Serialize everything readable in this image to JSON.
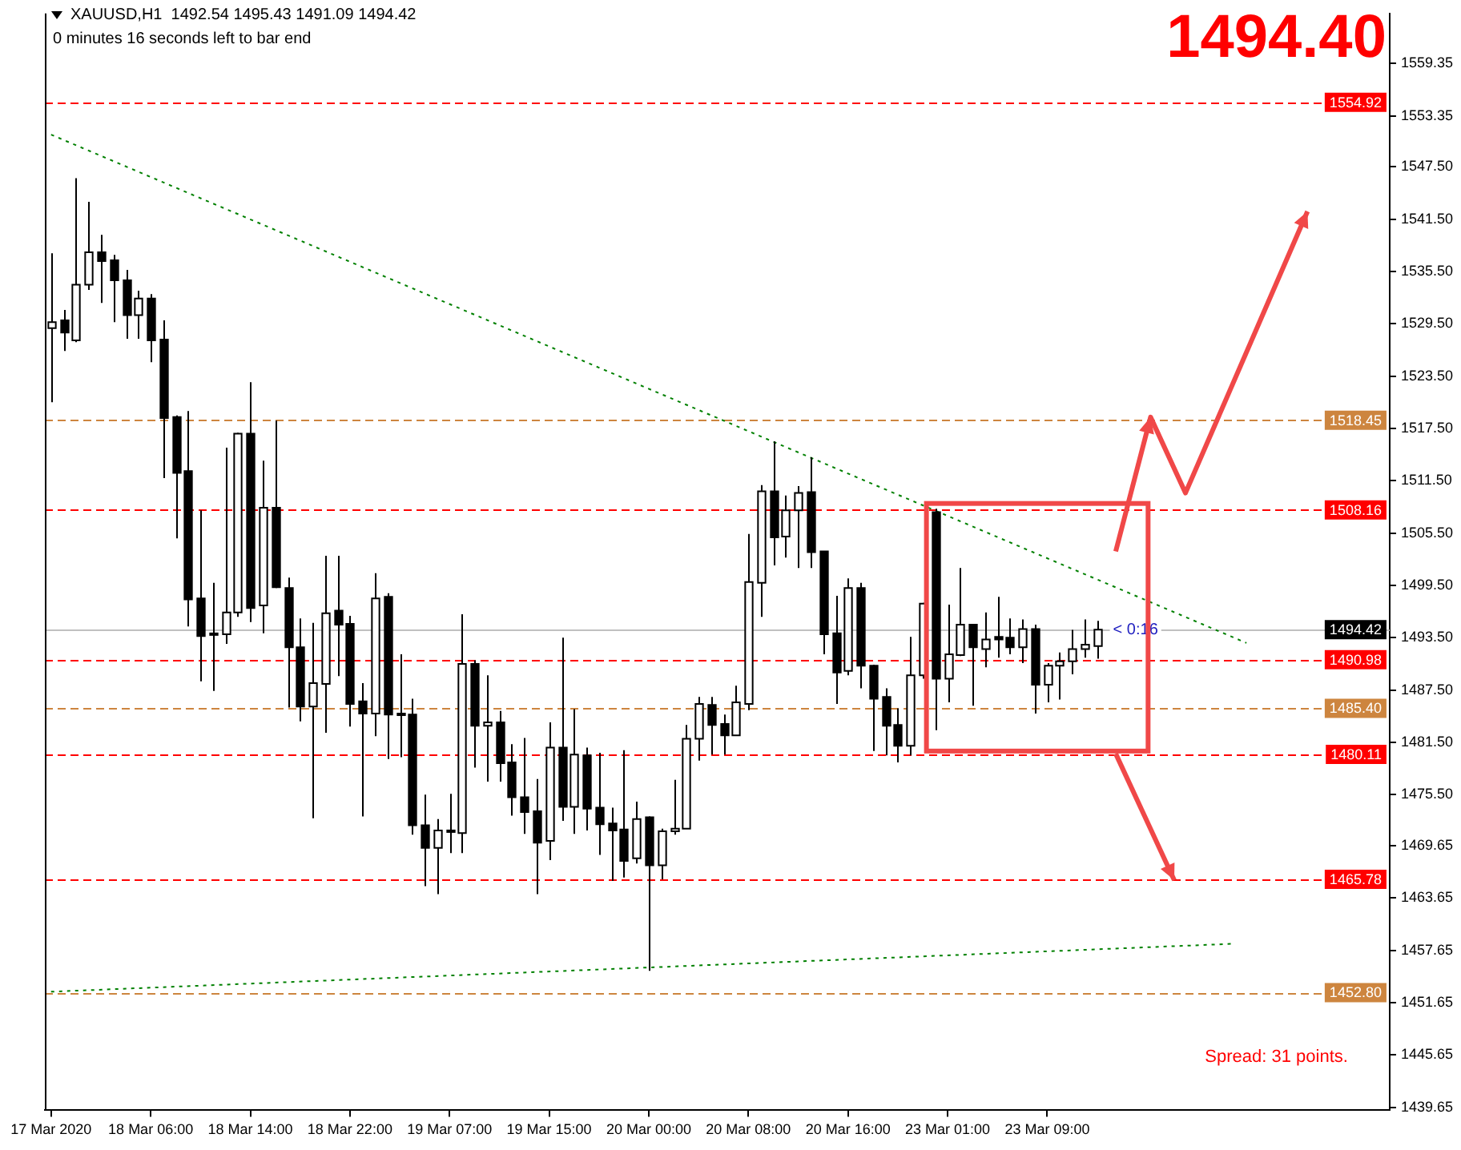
{
  "chart_data": {
    "type": "candlestick",
    "title": "XAUUSD,H1  1492.54 1495.43 1491.09 1494.42",
    "categories": [
      "17 Mar 2020",
      null,
      null,
      null,
      null,
      null,
      null,
      null,
      "18 Mar 06:00",
      null,
      null,
      null,
      null,
      null,
      null,
      null,
      "18 Mar 14:00",
      null,
      null,
      null,
      null,
      null,
      null,
      null,
      "18 Mar 22:00",
      null,
      null,
      null,
      null,
      null,
      null,
      null,
      "19 Mar 07:00",
      null,
      null,
      null,
      null,
      null,
      null,
      null,
      "19 Mar 15:00",
      null,
      null,
      null,
      null,
      null,
      null,
      null,
      "20 Mar 00:00",
      null,
      null,
      null,
      null,
      null,
      null,
      null,
      "20 Mar 08:00",
      null,
      null,
      null,
      null,
      null,
      null,
      null,
      "20 Mar 16:00",
      null,
      null,
      null,
      null,
      null,
      null,
      null,
      "23 Mar 01:00",
      null,
      null,
      null,
      null,
      null,
      null,
      null,
      "23 Mar 09:00",
      null,
      null,
      null,
      null,
      null,
      null,
      null,
      null,
      null,
      null,
      null,
      null,
      null,
      null,
      null,
      null,
      null,
      null,
      null,
      null,
      null,
      null,
      null,
      null,
      null,
      null,
      null
    ],
    "ohlc": [
      [
        1529.0,
        1537.6,
        1520.5,
        1529.7
      ],
      [
        1529.9,
        1531.1,
        1526.4,
        1528.5
      ],
      [
        1527.6,
        1546.2,
        1527.4,
        1534.0
      ],
      [
        1534.0,
        1543.5,
        1533.4,
        1537.7
      ],
      [
        1537.7,
        1539.7,
        1531.9,
        1536.7
      ],
      [
        1536.8,
        1537.4,
        1529.7,
        1534.5
      ],
      [
        1534.5,
        1535.7,
        1527.8,
        1530.5
      ],
      [
        1530.5,
        1533.3,
        1527.8,
        1532.4
      ],
      [
        1532.4,
        1532.9,
        1525.1,
        1527.6
      ],
      [
        1527.7,
        1529.9,
        1511.8,
        1518.7
      ],
      [
        1518.8,
        1519.0,
        1504.9,
        1512.4
      ],
      [
        1512.6,
        1519.5,
        1494.8,
        1497.9
      ],
      [
        1498.0,
        1508.1,
        1488.5,
        1493.7
      ],
      [
        1494.0,
        1499.8,
        1487.4,
        1493.9
      ],
      [
        1493.9,
        1515.3,
        1492.8,
        1496.4
      ],
      [
        1496.4,
        1517.0,
        1495.9,
        1516.9
      ],
      [
        1516.9,
        1522.8,
        1495.3,
        1496.9
      ],
      [
        1497.2,
        1513.8,
        1494.0,
        1508.4
      ],
      [
        1508.4,
        1518.4,
        1499.2,
        1499.3
      ],
      [
        1499.2,
        1500.4,
        1485.5,
        1492.4
      ],
      [
        1492.4,
        1495.7,
        1483.9,
        1485.6
      ],
      [
        1485.6,
        1495.2,
        1472.8,
        1488.3
      ],
      [
        1488.2,
        1502.9,
        1482.6,
        1496.3
      ],
      [
        1496.6,
        1502.9,
        1489.1,
        1495.0
      ],
      [
        1495.1,
        1496.0,
        1483.3,
        1485.9
      ],
      [
        1486.2,
        1488.3,
        1473.0,
        1484.8
      ],
      [
        1484.8,
        1500.9,
        1482.2,
        1498.0
      ],
      [
        1498.2,
        1498.6,
        1479.6,
        1484.7
      ],
      [
        1484.8,
        1491.6,
        1479.8,
        1484.8
      ],
      [
        1484.7,
        1486.5,
        1470.9,
        1472.0
      ],
      [
        1472.0,
        1475.5,
        1465.0,
        1469.4
      ],
      [
        1469.4,
        1472.7,
        1464.1,
        1471.4
      ],
      [
        1471.4,
        1475.6,
        1468.8,
        1471.4
      ],
      [
        1471.1,
        1496.2,
        1468.8,
        1490.5
      ],
      [
        1490.5,
        1490.9,
        1478.6,
        1483.4
      ],
      [
        1483.4,
        1489.2,
        1477.0,
        1483.8
      ],
      [
        1483.8,
        1485.1,
        1477.0,
        1479.1
      ],
      [
        1479.2,
        1481.3,
        1473.1,
        1475.2
      ],
      [
        1475.2,
        1482.0,
        1471.0,
        1473.5
      ],
      [
        1473.6,
        1477.3,
        1464.1,
        1470.0
      ],
      [
        1470.2,
        1483.8,
        1468.0,
        1480.9
      ],
      [
        1480.9,
        1493.5,
        1472.5,
        1474.1
      ],
      [
        1474.1,
        1485.3,
        1471.0,
        1480.1
      ],
      [
        1480.0,
        1480.9,
        1471.4,
        1473.9
      ],
      [
        1474.0,
        1480.3,
        1468.6,
        1472.1
      ],
      [
        1472.2,
        1474.0,
        1465.6,
        1471.4
      ],
      [
        1471.5,
        1480.6,
        1466.0,
        1467.9
      ],
      [
        1468.2,
        1474.7,
        1467.6,
        1472.7
      ],
      [
        1472.9,
        1473.0,
        1455.3,
        1467.4
      ],
      [
        1467.4,
        1471.6,
        1465.8,
        1471.3
      ],
      [
        1471.3,
        1477.2,
        1470.9,
        1471.6
      ],
      [
        1471.6,
        1483.5,
        1471.6,
        1481.9
      ],
      [
        1481.9,
        1486.7,
        1479.4,
        1485.9
      ],
      [
        1485.8,
        1486.7,
        1480.1,
        1483.5
      ],
      [
        1483.6,
        1484.7,
        1480.1,
        1482.3
      ],
      [
        1482.3,
        1488.0,
        1482.3,
        1486.1
      ],
      [
        1485.9,
        1505.4,
        1485.2,
        1499.9
      ],
      [
        1499.8,
        1511.0,
        1495.9,
        1510.3
      ],
      [
        1510.3,
        1516.0,
        1501.8,
        1505.0
      ],
      [
        1505.1,
        1509.8,
        1502.7,
        1508.1
      ],
      [
        1508.1,
        1510.9,
        1501.5,
        1510.1
      ],
      [
        1510.2,
        1514.2,
        1501.5,
        1503.3
      ],
      [
        1503.4,
        1503.4,
        1491.6,
        1493.9
      ],
      [
        1494.0,
        1498.3,
        1485.9,
        1489.5
      ],
      [
        1489.7,
        1500.3,
        1489.2,
        1499.2
      ],
      [
        1499.2,
        1499.8,
        1487.7,
        1490.3
      ],
      [
        1490.3,
        1490.4,
        1480.5,
        1486.5
      ],
      [
        1486.7,
        1487.7,
        1480.0,
        1483.4
      ],
      [
        1483.5,
        1485.4,
        1479.2,
        1481.1
      ],
      [
        1481.1,
        1493.6,
        1480.0,
        1489.2
      ],
      [
        1489.2,
        1497.5,
        1488.8,
        1497.4
      ],
      [
        1507.9,
        1508.3,
        1482.9,
        1488.8
      ],
      [
        1488.8,
        1497.3,
        1486.1,
        1491.6
      ],
      [
        1491.5,
        1501.5,
        1491.4,
        1495.0
      ],
      [
        1495.0,
        1495.1,
        1485.7,
        1492.4
      ],
      [
        1492.2,
        1496.4,
        1490.1,
        1493.3
      ],
      [
        1493.6,
        1498.2,
        1491.2,
        1493.3
      ],
      [
        1493.5,
        1495.7,
        1491.6,
        1492.4
      ],
      [
        1492.4,
        1495.6,
        1490.6,
        1494.5
      ],
      [
        1494.5,
        1495.0,
        1484.8,
        1488.1
      ],
      [
        1488.1,
        1490.6,
        1486.1,
        1490.3
      ],
      [
        1490.3,
        1491.8,
        1486.4,
        1490.8
      ],
      [
        1490.8,
        1494.4,
        1489.3,
        1492.2
      ],
      [
        1492.2,
        1495.6,
        1491.2,
        1492.7
      ],
      [
        1492.54,
        1495.43,
        1491.09,
        1494.42
      ],
      null,
      null,
      null,
      null,
      null,
      null,
      null,
      null,
      null,
      null,
      null,
      null,
      null,
      null,
      null,
      null,
      null,
      null,
      null,
      null,
      null,
      null,
      null
    ],
    "series": [
      {
        "type": "line",
        "color": "#008000",
        "line_style": "dotted",
        "values": [
          1551.2,
          null,
          null,
          null,
          null,
          null,
          null,
          null,
          null,
          null,
          null,
          null,
          null,
          null,
          null,
          null,
          null,
          null,
          null,
          null,
          null,
          null,
          null,
          null,
          null,
          null,
          null,
          null,
          null,
          null,
          null,
          null,
          null,
          null,
          null,
          null,
          null,
          null,
          null,
          null,
          null,
          null,
          null,
          null,
          null,
          null,
          null,
          null,
          null,
          null,
          null,
          null,
          null,
          null,
          null,
          null,
          null,
          null,
          null,
          null,
          null,
          null,
          null,
          null,
          null,
          null,
          null,
          null,
          null,
          null,
          null,
          null,
          null,
          null,
          null,
          null,
          null,
          null,
          null,
          null,
          null,
          null,
          null,
          null,
          null,
          null,
          null,
          null,
          null,
          null,
          null,
          null,
          null,
          null,
          null,
          null,
          1492.9,
          null,
          null,
          null,
          null,
          null,
          null,
          null,
          null,
          null,
          null,
          null
        ]
      },
      {
        "type": "line",
        "color": "#008000",
        "line_style": "dotted",
        "values": [
          1452.9,
          null,
          null,
          null,
          null,
          null,
          null,
          null,
          null,
          null,
          null,
          null,
          null,
          null,
          null,
          null,
          null,
          null,
          null,
          null,
          null,
          null,
          null,
          null,
          null,
          null,
          null,
          null,
          null,
          null,
          null,
          null,
          null,
          null,
          null,
          null,
          null,
          null,
          null,
          null,
          null,
          null,
          null,
          null,
          null,
          null,
          null,
          null,
          null,
          null,
          null,
          null,
          null,
          null,
          null,
          null,
          null,
          null,
          null,
          null,
          null,
          null,
          null,
          null,
          null,
          null,
          null,
          null,
          null,
          null,
          null,
          null,
          null,
          null,
          null,
          null,
          null,
          null,
          null,
          null,
          null,
          null,
          null,
          null,
          null,
          null,
          null,
          null,
          null,
          null,
          null,
          null,
          null,
          null,
          null,
          1458.4,
          null,
          null,
          null,
          null,
          null,
          null,
          null,
          null,
          null,
          null,
          null,
          null
        ]
      }
    ],
    "ylim": [
      1439.3,
      1565.1
    ],
    "yticks": [
      {
        "value": 1559.35,
        "label": "1559.35"
      },
      {
        "value": 1553.35,
        "label": "1553.35"
      },
      {
        "value": 1547.5,
        "label": "1547.50"
      },
      {
        "value": 1541.5,
        "label": "1541.50"
      },
      {
        "value": 1535.5,
        "label": "1535.50"
      },
      {
        "value": 1529.5,
        "label": "1529.50"
      },
      {
        "value": 1523.5,
        "label": "1523.50"
      },
      {
        "value": 1517.5,
        "label": "1517.50"
      },
      {
        "value": 1511.5,
        "label": "1511.50"
      },
      {
        "value": 1505.5,
        "label": "1505.50"
      },
      {
        "value": 1499.5,
        "label": "1499.50"
      },
      {
        "value": 1493.5,
        "label": "1493.50"
      },
      {
        "value": 1487.5,
        "label": "1487.50"
      },
      {
        "value": 1481.5,
        "label": "1481.50"
      },
      {
        "value": 1475.5,
        "label": "1475.50"
      },
      {
        "value": 1469.65,
        "label": "1469.65"
      },
      {
        "value": 1463.65,
        "label": "1463.65"
      },
      {
        "value": 1457.65,
        "label": "1457.65"
      },
      {
        "value": 1451.65,
        "label": "1451.65"
      },
      {
        "value": 1445.65,
        "label": "1445.65"
      },
      {
        "value": 1439.65,
        "label": "1439.65"
      }
    ],
    "ref_lines": [
      {
        "axis": "y",
        "value": 1554.92,
        "label": "1554.92",
        "color": "#ff0000",
        "line_style": "dashed"
      },
      {
        "axis": "y",
        "value": 1518.45,
        "label": "1518.45",
        "color": "#cd853f",
        "line_style": "dashed"
      },
      {
        "axis": "y",
        "value": 1508.16,
        "label": "1508.16",
        "color": "#ff0000",
        "line_style": "dashed"
      },
      {
        "axis": "y",
        "value": 1494.42,
        "label": "1494.42",
        "color": "#c0c0c0",
        "line_style": "solid"
      },
      {
        "axis": "y",
        "value": 1490.98,
        "label": "1490.98",
        "color": "#ff0000",
        "line_style": "dashed"
      },
      {
        "axis": "y",
        "value": 1485.4,
        "label": "1485.40",
        "color": "#cd853f",
        "line_style": "dashed"
      },
      {
        "axis": "y",
        "value": 1480.11,
        "label": "1480.11",
        "color": "#ff0000",
        "line_style": "dashed"
      },
      {
        "axis": "y",
        "value": 1465.78,
        "label": "1465.78",
        "color": "#ff0000",
        "line_style": "dashed"
      },
      {
        "axis": "y",
        "value": 1452.8,
        "label": "1452.80",
        "color": "#cd853f",
        "line_style": "dashed"
      }
    ],
    "annotations": [
      "0 minutes 16 seconds left to bar end",
      "1494.40",
      "< 0:16",
      "Spread: 31 points."
    ],
    "grid": false,
    "legend": false
  }
}
